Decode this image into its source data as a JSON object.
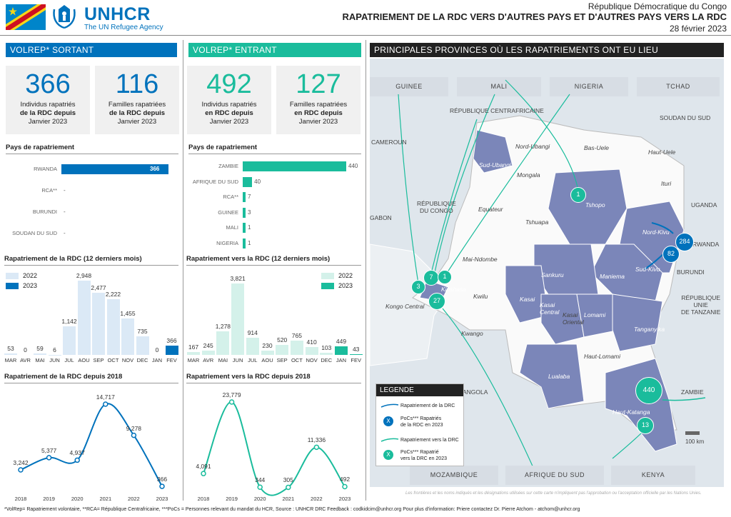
{
  "header": {
    "org_name": "UNHCR",
    "org_tagline": "The UN Refugee Agency",
    "country": "République Démocratique du Congo",
    "title": "RAPATRIEMENT DE LA RDC VERS D'AUTRES PAYS ET D'AUTRES PAYS VERS LA RDC",
    "date": "28 février 2023",
    "colors": {
      "blue": "#0072bc",
      "teal": "#1abc9c",
      "map_fill": "#7b86b9"
    }
  },
  "outgoing": {
    "section_title": "VOLREP* SORTANT",
    "kpi1_value": "366",
    "kpi1_label_l1": "Individus rapatriés",
    "kpi1_label_l2": "de la RDC depuis",
    "kpi1_label_l3": "Janvier 2023",
    "kpi2_value": "116",
    "kpi2_label_l1": "Familles rapatriées",
    "kpi2_label_l2": "de la RDC depuis",
    "kpi2_label_l3": "Janvier 2023",
    "countries_title": "Pays de rapatriement",
    "countries": [
      {
        "name": "RWANDA",
        "value": "366",
        "num": 366
      },
      {
        "name": "RCA**",
        "value": "-",
        "num": 0
      },
      {
        "name": "BURUNDI",
        "value": "-",
        "num": 0
      },
      {
        "name": "SOUDAN DU SUD",
        "value": "-",
        "num": 0
      }
    ],
    "monthly_title": "Rapatriement de la RDC (12 derniers mois)",
    "legend_2022": "2022",
    "legend_2023": "2023",
    "yearly_title": "Rapatriement de la RDC depuis 2018"
  },
  "incoming": {
    "section_title": "VOLREP* ENTRANT",
    "kpi1_value": "492",
    "kpi1_label_l1": "Individus rapatriés",
    "kpi1_label_l2": "en RDC depuis",
    "kpi1_label_l3": "Janvier 2023",
    "kpi2_value": "127",
    "kpi2_label_l1": "Familles rapatriées",
    "kpi2_label_l2": "en RDC depuis",
    "kpi2_label_l3": "Janvier 2023",
    "countries_title": "Pays de rapatriement",
    "countries": [
      {
        "name": "ZAMBIE",
        "value": "440",
        "num": 440
      },
      {
        "name": "AFRIQUE DU SUD",
        "value": "40",
        "num": 40
      },
      {
        "name": "RCA**",
        "value": "7",
        "num": 7
      },
      {
        "name": "GUINEE",
        "value": "3",
        "num": 3
      },
      {
        "name": "MALI",
        "value": "1",
        "num": 1
      },
      {
        "name": "NIGERIA",
        "value": "1",
        "num": 1
      }
    ],
    "monthly_title": "Rapatriement vers la RDC (12 derniers mois)",
    "legend_2022": "2022",
    "legend_2023": "2023",
    "yearly_title": "Rapatriement vers la RDC depuis 2018"
  },
  "chart_data": [
    {
      "type": "bar",
      "title": "Rapatriement de la RDC (12 derniers mois)",
      "categories": [
        "MAR",
        "AVR",
        "MAI",
        "JUN",
        "JUL",
        "AOU",
        "SEP",
        "OCT",
        "NOV",
        "DEC",
        "JAN",
        "FEV"
      ],
      "values": [
        53,
        0,
        59,
        6,
        1142,
        2948,
        2477,
        2222,
        1455,
        735,
        0,
        366
      ],
      "labels": [
        "53",
        "0",
        "59",
        "6",
        "1,142",
        "2,948",
        "2,477",
        "2,222",
        "1,455",
        "735",
        "0",
        "366"
      ],
      "series_year": [
        "2022",
        "2022",
        "2022",
        "2022",
        "2022",
        "2022",
        "2022",
        "2022",
        "2022",
        "2022",
        "2023",
        "2023"
      ],
      "color_2022": "#dbe9f6",
      "color_2023": "#0072bc"
    },
    {
      "type": "line",
      "title": "Rapatriement de la RDC depuis 2018",
      "x": [
        "2018",
        "2019",
        "2020",
        "2021",
        "2022",
        "2023"
      ],
      "values": [
        3242,
        5377,
        4937,
        14717,
        9278,
        366
      ],
      "labels": [
        "3,242",
        "5,377",
        "4,937",
        "14,717",
        "9,278",
        "366"
      ],
      "color": "#0072bc"
    },
    {
      "type": "bar",
      "title": "Rapatriement vers la RDC (12 derniers mois)",
      "categories": [
        "MAR",
        "AVR",
        "MAI",
        "JUN",
        "JUL",
        "AOU",
        "SEP",
        "OCT",
        "NOV",
        "DEC",
        "JAN",
        "FEV"
      ],
      "values": [
        167,
        245,
        1278,
        3821,
        914,
        230,
        520,
        765,
        410,
        103,
        449,
        43
      ],
      "labels": [
        "167",
        "245",
        "1,278",
        "3,821",
        "914",
        "230",
        "520",
        "765",
        "410",
        "103",
        "449",
        "43"
      ],
      "series_year": [
        "2022",
        "2022",
        "2022",
        "2022",
        "2022",
        "2022",
        "2022",
        "2022",
        "2022",
        "2022",
        "2023",
        "2023"
      ],
      "color_2022": "#d4f1ea",
      "color_2023": "#1abc9c"
    },
    {
      "type": "line",
      "title": "Rapatriement vers la RDC depuis 2018",
      "x": [
        "2018",
        "2019",
        "2020",
        "2021",
        "2022",
        "2023"
      ],
      "values": [
        4091,
        23779,
        344,
        305,
        11336,
        492
      ],
      "labels": [
        "4,091",
        "23,779",
        "344",
        "305",
        "11,336",
        "492"
      ],
      "color": "#1abc9c"
    }
  ],
  "map": {
    "section_title": "PRINCIPALES PROVINCES OÙ LES RAPATRIEMENTS ONT EU LIEU",
    "top_countries": [
      "GUINEE",
      "MALI",
      "NIGERIA",
      "TCHAD"
    ],
    "bottom_countries": [
      "MOZAMBIQUE",
      "AFRIQUE DU SUD",
      "KENYA"
    ],
    "labels": {
      "rca": "RÉPUBLIQUE CENTRAFRICAINE",
      "soudan": "SOUDAN DU SUD",
      "cameroun": "CAMEROUN",
      "congo_l1": "RÉPUBLIQUE",
      "congo_l2": "DU CONGO",
      "gabon": "GABON",
      "uganda": "UGANDA",
      "rwanda": "RWANDA",
      "burundi": "BURUNDI",
      "tanzania_l1": "RÉPUBLIQUE",
      "tanzania_l2": "UNIE",
      "tanzania_l3": "DE TANZANIE",
      "angola": "ANGOLA",
      "zambia": "ZAMBIE",
      "nord_ubangi": "Nord-Ubangi",
      "sud_ubangi": "Sud-Ubangi",
      "bas_uele": "Bas-Uele",
      "haut_uele": "Haut-Uele",
      "mongala": "Mongala",
      "ituri": "Ituri",
      "tshopo": "Tshopo",
      "equateur": "Equateur",
      "tshuapa": "Tshuapa",
      "nord_kivu": "Nord-Kivu",
      "sud_kivu": "Sud-Kivu",
      "mai_ndombe": "Mai-Ndombe",
      "kinshasa": "Kinshasa",
      "kongo_central": "Kongo Central",
      "kwilu": "Kwilu",
      "kwango": "Kwango",
      "sankuru": "Sankuru",
      "maniema": "Maniema",
      "kasai": "Kasai",
      "kasai_central_l1": "Kasai",
      "kasai_central_l2": "Central",
      "kasai_oriental_l1": "Kasai",
      "kasai_oriental_l2": "Oriental",
      "lomami": "Lomami",
      "tanganyika": "Tanganyika",
      "haut_lomami": "Haut-Lomami",
      "lualaba": "Lualaba",
      "haut_katanga": "Haut-Katanga"
    },
    "circles": {
      "tshopo": "1",
      "kin_a": "7",
      "kin_b": "1",
      "kongo_3": "3",
      "kongo_27": "27",
      "nk_284": "284",
      "sk_82": "82",
      "hk_440": "440",
      "hk_13": "13"
    },
    "scale": "100 km",
    "legend": {
      "title": "LEGENDE",
      "item1": "Rapatriement de la DRC",
      "item2_l1": "PoCs*** Rapatriés",
      "item2_l2": "de la RDC en 2023",
      "item3": "Rapatriement vers la DRC",
      "item4_l1": "PoCs*** Rapatrié",
      "item4_l2": "vers la DRC en 2023",
      "glyph": "X"
    },
    "disclaimer": "Les frontières et les noms indiqués et les désignations utilisées sur cette carte n'impliquent pas l'approbation ou l'acceptation officielle par les Nations Unies."
  },
  "footer": {
    "notes": "*VolRep= Rapatriement volontaire, **RCA= République Centrafricaine, ***PoCs = Personnes relevant du mandat du HCR, Source : UNHCR DRC Feedback : codkidcim@unhcr.org     Pour plus d'information: Priere contactez Dr. Pierre Atchom - atchom@unhcr.org"
  }
}
